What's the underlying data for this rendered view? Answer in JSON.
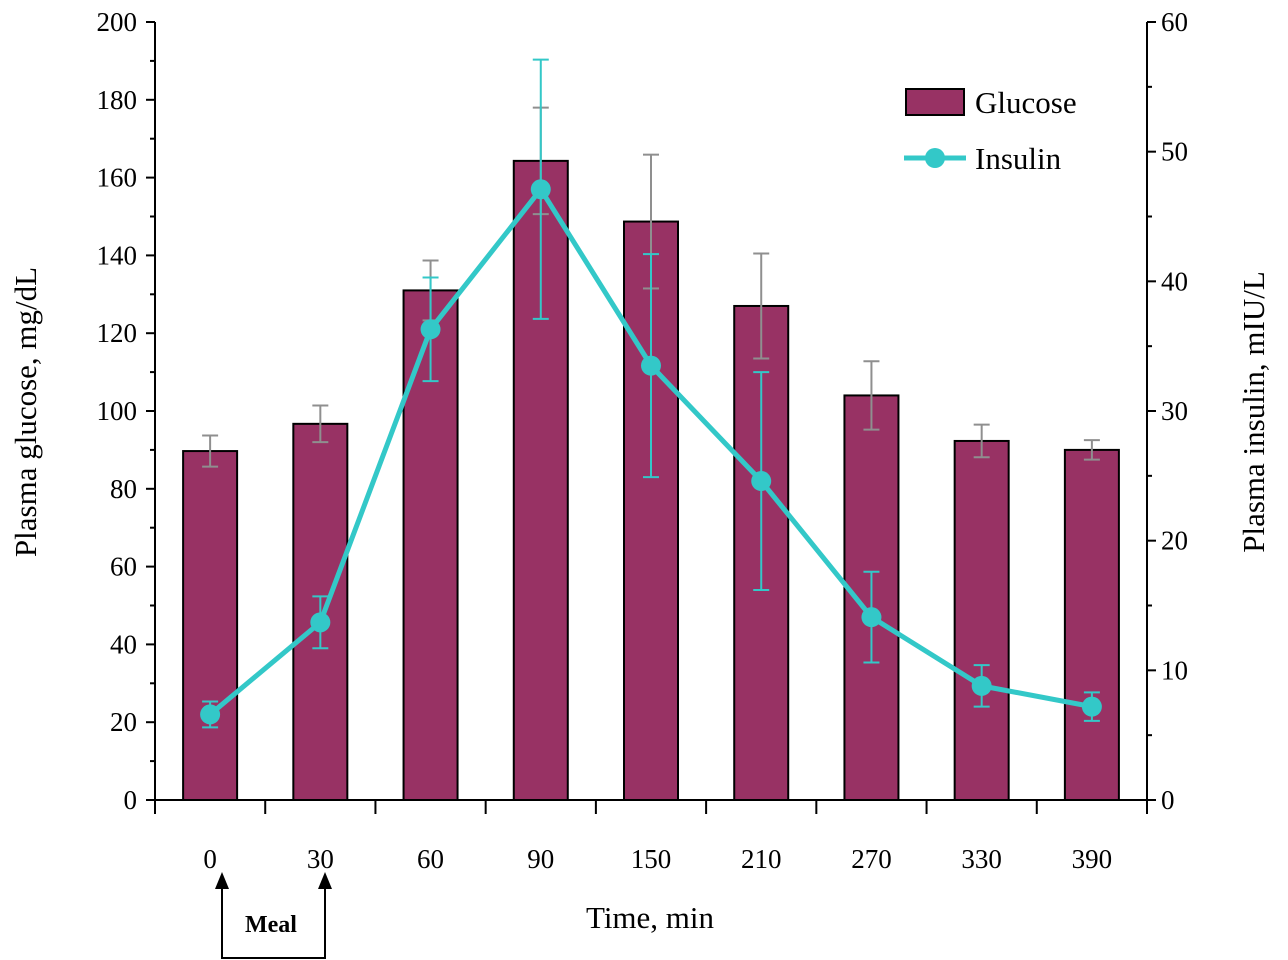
{
  "chart_data": {
    "type": "bar",
    "categories": [
      "0",
      "30",
      "60",
      "90",
      "150",
      "210",
      "270",
      "330",
      "390"
    ],
    "xlabel": "Time, min",
    "ylabel": "Plasma glucose, mg/dL",
    "y2label": "Plasma insulin, mIU/L",
    "ylim": [
      0,
      200
    ],
    "y2lim": [
      0,
      60
    ],
    "yticks": [
      0,
      20,
      40,
      60,
      80,
      100,
      120,
      140,
      160,
      180,
      200
    ],
    "y2ticks": [
      0,
      10,
      20,
      30,
      40,
      50,
      60
    ],
    "legend_position": "top-right",
    "grid": false,
    "series": [
      {
        "name": "Glucose",
        "type": "bar",
        "axis": "left",
        "color": "#983264",
        "values": [
          89.7,
          96.7,
          131,
          164.3,
          148.7,
          127,
          104,
          92.3,
          90
        ],
        "errors": [
          4,
          4.7,
          7.7,
          13.7,
          17.2,
          13.5,
          8.8,
          4.2,
          2.5
        ]
      },
      {
        "name": "Insulin",
        "type": "line",
        "axis": "right",
        "color": "#33c8c8",
        "values": [
          6.6,
          13.7,
          36.3,
          47.1,
          33.5,
          24.6,
          14.1,
          8.8,
          7.2
        ],
        "errors": [
          1,
          2,
          4,
          10,
          8.6,
          8.4,
          3.5,
          1.6,
          1.1
        ]
      }
    ],
    "annotations": [
      {
        "text": "Meal",
        "between_categories": [
          "0",
          "30"
        ]
      }
    ]
  }
}
